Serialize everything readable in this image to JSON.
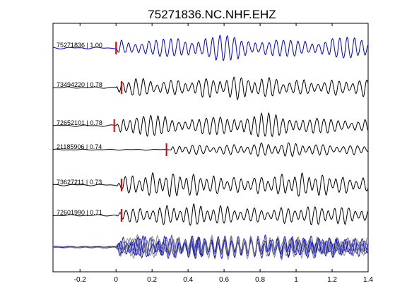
{
  "chart_data": {
    "type": "line",
    "title": "75271836.NC.NHF.EHZ",
    "xlabel": "",
    "ylabel": "",
    "xlim": [
      -0.35,
      1.4
    ],
    "xticks": [
      -0.2,
      0,
      0.2,
      0.4,
      0.6,
      0.8,
      1,
      1.2,
      1.4
    ],
    "xtick_labels": [
      "-0.2",
      "0",
      "0.2",
      "0.4",
      "0.6",
      "0.8",
      "1",
      "1.2",
      "1.4"
    ],
    "grid": false,
    "legend": "none",
    "colors": {
      "reference": "#0000cc",
      "trace": "#000000",
      "pick": "#dd0000",
      "stack": "#808080"
    },
    "traces": [
      {
        "label": "75271836 | 1.00",
        "pick": 0.0,
        "color": "#0000cc",
        "seed": 1
      },
      {
        "label": "73494220 | 0.78",
        "pick": 0.03,
        "color": "#000000",
        "seed": 2
      },
      {
        "label": "72652101 | 0.78",
        "pick": -0.01,
        "color": "#000000",
        "seed": 3
      },
      {
        "label": "21185906 | 0.74",
        "pick": 0.28,
        "color": "#000000",
        "seed": 4
      },
      {
        "label": "73627211 | 0.73",
        "pick": 0.03,
        "color": "#000000",
        "seed": 5
      },
      {
        "label": "72601990 | 0.71",
        "pick": 0.03,
        "color": "#000000",
        "seed": 6
      }
    ],
    "overlay": {
      "label": "",
      "colors": [
        "#808080",
        "#0000cc"
      ]
    }
  }
}
